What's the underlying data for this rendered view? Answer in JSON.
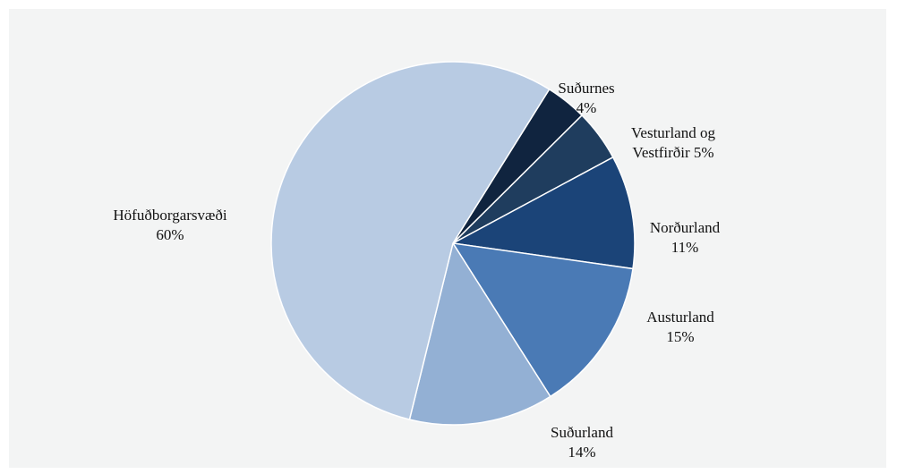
{
  "chart_data": {
    "type": "pie",
    "categories": [
      "Suðurnes",
      "Vesturland og Vestfirðir",
      "Norðurland",
      "Austurland",
      "Suðurland",
      "Höfuðborgarsvæði"
    ],
    "values": [
      4,
      5,
      11,
      15,
      14,
      60
    ],
    "value_labels": [
      "4%",
      "5%",
      "11%",
      "15%",
      "14%",
      "60%"
    ],
    "colors": [
      "#10243f",
      "#1f3d5e",
      "#1b4478",
      "#4a7ab5",
      "#93b0d4",
      "#b8cbe3"
    ]
  }
}
